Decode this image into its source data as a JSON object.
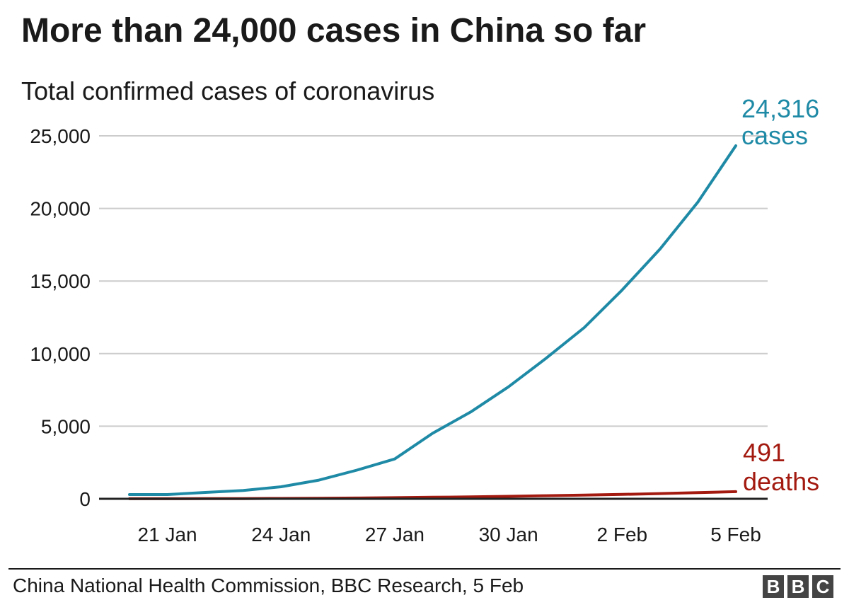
{
  "title": "More than 24,000 cases in China so far",
  "subtitle": "Total confirmed cases of coronavirus",
  "source": "China National Health Commission, BBC Research, 5 Feb",
  "logo": {
    "letters": [
      "B",
      "B",
      "C"
    ]
  },
  "colors": {
    "cases": "#1f8aa6",
    "deaths": "#a31a10",
    "text": "#1a1a1a",
    "grid": "#cccccc",
    "axis": "#222222"
  },
  "chart_data": {
    "type": "line",
    "title": "More than 24,000 cases in China so far",
    "subtitle": "Total confirmed cases of coronavirus",
    "xlabel": "",
    "ylabel": "",
    "x": [
      "20 Jan",
      "21 Jan",
      "22 Jan",
      "23 Jan",
      "24 Jan",
      "25 Jan",
      "26 Jan",
      "27 Jan",
      "28 Jan",
      "29 Jan",
      "30 Jan",
      "31 Jan",
      "1 Feb",
      "2 Feb",
      "3 Feb",
      "4 Feb",
      "5 Feb"
    ],
    "xticks": [
      "21 Jan",
      "24 Jan",
      "27 Jan",
      "30 Jan",
      "2 Feb",
      "5 Feb"
    ],
    "yticks": [
      "0",
      "5,000",
      "10,000",
      "15,000",
      "20,000",
      "25,000"
    ],
    "ytick_values": [
      0,
      5000,
      10000,
      15000,
      20000,
      25000
    ],
    "ylim": [
      0,
      25000
    ],
    "grid": true,
    "series": [
      {
        "name": "cases",
        "color": "#1f8aa6",
        "values": [
          291,
          291,
          440,
          571,
          830,
          1287,
          1975,
          2744,
          4515,
          5974,
          7711,
          9692,
          11791,
          14380,
          17205,
          20438,
          24316
        ],
        "end_label": [
          "24,316",
          "cases"
        ]
      },
      {
        "name": "deaths",
        "color": "#a31a10",
        "values": [
          6,
          6,
          9,
          17,
          25,
          41,
          56,
          80,
          106,
          132,
          170,
          213,
          259,
          304,
          361,
          425,
          491
        ],
        "end_label": [
          "491",
          "deaths"
        ]
      }
    ]
  }
}
